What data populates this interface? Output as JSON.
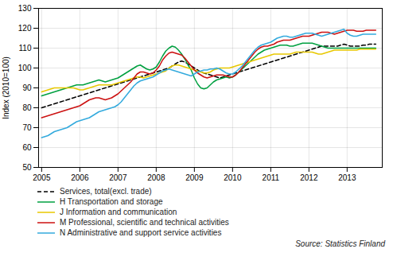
{
  "chart_data": {
    "type": "line",
    "ylabel": "Index (2010=100)",
    "caption": "Source: Statistics Finland",
    "xlim": [
      2004.92,
      2013.92
    ],
    "xticks": [
      2005,
      2006,
      2007,
      2008,
      2009,
      2010,
      2011,
      2012,
      2013
    ],
    "ylim": [
      50,
      130
    ],
    "yticks": [
      50,
      60,
      70,
      80,
      90,
      100,
      110,
      120,
      130
    ],
    "grid": true,
    "legend": "bottom",
    "x": [
      2005,
      2005.0833333333,
      2005.1666666667,
      2005.25,
      2005.3333333333,
      2005.4166666667,
      2005.5,
      2005.5833333333,
      2005.6666666667,
      2005.75,
      2005.8333333333,
      2005.9166666667,
      2006,
      2006.0833333333,
      2006.1666666667,
      2006.25,
      2006.3333333333,
      2006.4166666667,
      2006.5,
      2006.5833333333,
      2006.6666666667,
      2006.75,
      2006.8333333333,
      2006.9166666667,
      2007,
      2007.0833333333,
      2007.1666666667,
      2007.25,
      2007.3333333333,
      2007.4166666667,
      2007.5,
      2007.5833333333,
      2007.6666666667,
      2007.75,
      2007.8333333333,
      2007.9166666667,
      2008,
      2008.0833333333,
      2008.1666666667,
      2008.25,
      2008.3333333333,
      2008.4166666667,
      2008.5,
      2008.5833333333,
      2008.6666666667,
      2008.75,
      2008.8333333333,
      2008.9166666667,
      2009,
      2009.0833333333,
      2009.1666666667,
      2009.25,
      2009.3333333333,
      2009.4166666667,
      2009.5,
      2009.5833333333,
      2009.6666666667,
      2009.75,
      2009.8333333333,
      2009.9166666667,
      2010,
      2010.0833333333,
      2010.1666666667,
      2010.25,
      2010.3333333333,
      2010.4166666667,
      2010.5,
      2010.5833333333,
      2010.6666666667,
      2010.75,
      2010.8333333333,
      2010.9166666667,
      2011,
      2011.0833333333,
      2011.1666666667,
      2011.25,
      2011.3333333333,
      2011.4166666667,
      2011.5,
      2011.5833333333,
      2011.6666666667,
      2011.75,
      2011.8333333333,
      2011.9166666667,
      2012,
      2012.0833333333,
      2012.1666666667,
      2012.25,
      2012.3333333333,
      2012.4166666667,
      2012.5,
      2012.5833333333,
      2012.6666666667,
      2012.75,
      2012.8333333333,
      2012.9166666667,
      2013,
      2013.0833333333,
      2013.1666666667,
      2013.25,
      2013.3333333333,
      2013.4166666667,
      2013.5,
      2013.5833333333,
      2013.6666666667,
      2013.75
    ],
    "series": [
      {
        "name": "Services, total(excl. trade)",
        "color": "#000000",
        "line_style": "dashed",
        "values": [
          80.0,
          80.5,
          81.0,
          81.5,
          82.0,
          82.5,
          83.0,
          83.5,
          84.0,
          84.5,
          85.0,
          85.5,
          86.0,
          86.5,
          87.0,
          87.5,
          88.0,
          88.5,
          89.0,
          89.5,
          90.0,
          90.5,
          91.0,
          91.5,
          92.0,
          92.5,
          93.0,
          93.5,
          94.0,
          94.5,
          95.0,
          95.5,
          96.0,
          96.5,
          97.0,
          97.5,
          98.0,
          98.5,
          99.0,
          99.5,
          100.0,
          101.0,
          102.0,
          103.0,
          103.5,
          103.0,
          102.0,
          101.0,
          100.0,
          99.0,
          98.0,
          97.5,
          97.0,
          96.5,
          96.0,
          95.5,
          95.0,
          95.5,
          96.0,
          96.5,
          97.0,
          97.5,
          98.0,
          98.5,
          99.0,
          99.5,
          100.0,
          100.5,
          101.0,
          101.5,
          102.0,
          102.5,
          103.0,
          103.5,
          104.0,
          104.5,
          105.0,
          105.5,
          106.0,
          106.5,
          107.0,
          107.5,
          108.0,
          108.5,
          109.0,
          109.5,
          110.0,
          110.5,
          111.0,
          111.0,
          111.0,
          111.0,
          111.0,
          111.0,
          111.5,
          112.0,
          111.5,
          111.0,
          111.0,
          111.0,
          111.0,
          111.5,
          111.5,
          112.0,
          112.0,
          112.0
        ]
      },
      {
        "name": "H Transportation and storage",
        "color": "#00a040",
        "line_style": "solid",
        "values": [
          86.0,
          86.5,
          87.0,
          87.5,
          88.0,
          88.5,
          89.0,
          89.5,
          90.0,
          90.5,
          91.0,
          91.5,
          91.5,
          91.5,
          92.0,
          92.5,
          93.0,
          93.5,
          94.0,
          93.5,
          93.0,
          93.5,
          94.0,
          94.5,
          95.0,
          96.0,
          97.0,
          98.0,
          99.0,
          100.0,
          101.0,
          101.5,
          100.5,
          99.5,
          99.0,
          99.5,
          100.5,
          103.0,
          106.0,
          108.5,
          110.0,
          111.0,
          110.5,
          109.0,
          107.0,
          104.5,
          101.5,
          99.0,
          95.0,
          92.0,
          90.0,
          89.5,
          90.0,
          91.5,
          93.0,
          94.0,
          94.5,
          95.0,
          95.5,
          95.0,
          95.5,
          96.5,
          98.0,
          99.5,
          101.0,
          102.5,
          104.0,
          105.5,
          107.0,
          108.0,
          109.0,
          109.5,
          110.0,
          110.5,
          111.0,
          111.5,
          111.5,
          111.5,
          111.0,
          111.0,
          111.5,
          112.0,
          112.5,
          112.5,
          112.5,
          112.5,
          112.0,
          111.5,
          111.0,
          110.5,
          110.0,
          110.0,
          110.0,
          110.0,
          110.0,
          110.0,
          110.0,
          110.0,
          110.0,
          110.0,
          110.0,
          110.0,
          110.0,
          110.0,
          110.0,
          110.0
        ]
      },
      {
        "name": "J Information and communication",
        "color": "#e8c800",
        "line_style": "solid",
        "values": [
          88.0,
          88.5,
          89.0,
          89.5,
          90.0,
          90.0,
          90.0,
          90.0,
          90.0,
          90.0,
          90.0,
          89.5,
          89.0,
          89.0,
          89.5,
          90.0,
          90.5,
          91.0,
          91.5,
          91.5,
          91.5,
          91.5,
          91.5,
          92.0,
          92.5,
          93.0,
          93.5,
          94.0,
          94.5,
          95.0,
          95.5,
          95.5,
          95.0,
          95.5,
          96.0,
          96.5,
          97.0,
          97.5,
          98.0,
          98.5,
          100.0,
          101.0,
          101.5,
          101.5,
          101.0,
          100.5,
          100.0,
          99.5,
          99.0,
          98.5,
          98.0,
          97.5,
          97.5,
          98.0,
          99.0,
          99.5,
          100.0,
          100.0,
          100.0,
          100.0,
          100.5,
          101.0,
          101.5,
          102.0,
          102.5,
          103.0,
          103.5,
          104.0,
          104.5,
          105.0,
          105.5,
          106.0,
          106.5,
          107.0,
          107.0,
          107.0,
          107.0,
          107.0,
          107.0,
          107.5,
          108.0,
          108.0,
          108.0,
          108.0,
          108.0,
          108.0,
          107.5,
          107.0,
          107.0,
          107.5,
          108.0,
          108.5,
          109.0,
          109.0,
          109.0,
          109.0,
          109.0,
          109.0,
          109.0,
          109.0,
          109.5,
          109.5,
          109.5,
          109.5,
          109.5,
          109.5
        ]
      },
      {
        "name": "M Professional, scientific and technical activities",
        "color": "#cc1111",
        "line_style": "solid",
        "values": [
          75.0,
          75.5,
          76.0,
          76.5,
          77.0,
          77.5,
          78.0,
          78.5,
          79.0,
          79.5,
          80.0,
          80.5,
          81.0,
          82.0,
          83.0,
          84.0,
          84.5,
          85.0,
          85.0,
          84.5,
          84.0,
          84.5,
          85.0,
          86.0,
          87.0,
          88.5,
          90.0,
          91.5,
          93.0,
          95.0,
          97.0,
          98.0,
          98.0,
          97.5,
          97.0,
          97.5,
          99.0,
          101.0,
          104.0,
          106.0,
          107.5,
          108.0,
          107.5,
          107.0,
          106.5,
          105.0,
          103.0,
          101.0,
          99.0,
          97.5,
          96.5,
          95.5,
          95.0,
          95.5,
          96.0,
          96.5,
          96.5,
          96.5,
          96.0,
          95.5,
          95.5,
          96.5,
          98.0,
          100.0,
          102.0,
          104.0,
          106.0,
          108.0,
          109.5,
          110.5,
          111.0,
          111.0,
          111.5,
          112.0,
          113.0,
          113.5,
          114.0,
          114.0,
          114.0,
          114.5,
          115.0,
          115.5,
          116.0,
          116.0,
          116.0,
          116.5,
          117.0,
          117.5,
          118.0,
          118.0,
          118.0,
          117.5,
          117.0,
          117.5,
          118.0,
          118.5,
          119.0,
          119.0,
          119.0,
          118.5,
          118.5,
          118.5,
          119.0,
          119.0,
          119.0,
          119.0
        ]
      },
      {
        "name": "N Administrative and support service activities",
        "color": "#33aadd",
        "line_style": "solid",
        "values": [
          65.0,
          65.5,
          66.0,
          67.0,
          68.0,
          68.5,
          69.0,
          69.5,
          70.0,
          71.0,
          72.0,
          73.0,
          73.5,
          74.0,
          74.5,
          75.0,
          76.0,
          77.0,
          78.0,
          78.5,
          79.0,
          79.5,
          80.0,
          80.5,
          81.5,
          83.0,
          85.0,
          87.0,
          89.0,
          91.0,
          92.5,
          93.5,
          94.0,
          94.5,
          95.0,
          95.5,
          96.5,
          97.5,
          98.5,
          99.0,
          99.5,
          99.0,
          98.5,
          98.0,
          97.5,
          97.0,
          96.5,
          96.0,
          97.0,
          98.0,
          98.5,
          99.0,
          99.0,
          99.5,
          99.5,
          100.0,
          99.5,
          98.5,
          97.5,
          97.0,
          97.0,
          98.0,
          99.5,
          101.0,
          103.0,
          105.0,
          107.0,
          109.0,
          110.5,
          111.5,
          112.0,
          112.5,
          113.0,
          114.0,
          115.0,
          115.5,
          116.0,
          116.0,
          115.5,
          115.5,
          116.0,
          116.5,
          117.0,
          117.5,
          117.5,
          117.5,
          117.0,
          116.5,
          116.0,
          116.5,
          117.0,
          117.5,
          118.0,
          118.5,
          119.0,
          119.5,
          117.5,
          116.5,
          116.0,
          116.0,
          116.5,
          117.0,
          117.0,
          117.0,
          117.0,
          117.0
        ]
      }
    ]
  }
}
